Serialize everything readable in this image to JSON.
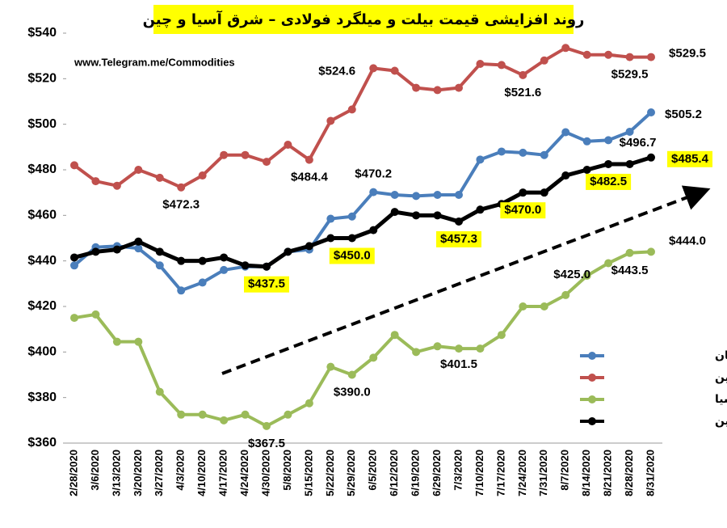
{
  "chart_data": {
    "type": "line",
    "title": "روند افزایشی قیمت بیلت و میلگرد فولادی – شرق آسیا و چین",
    "watermark": "www.Telegram.me/Commodities",
    "categories": [
      "2/28/2020",
      "3/6/2020",
      "3/13/2020",
      "3/20/2020",
      "3/27/2020",
      "4/3/2020",
      "4/10/2020",
      "4/17/2020",
      "4/24/2020",
      "4/30/2020",
      "5/8/2020",
      "5/15/2020",
      "5/22/2020",
      "5/29/2020",
      "6/5/2020",
      "6/12/2020",
      "6/19/2020",
      "6/29/2020",
      "7/3/2020",
      "7/10/2020",
      "7/17/2020",
      "7/24/2020",
      "7/31/2020",
      "8/7/2020",
      "8/14/2020",
      "8/21/2020",
      "8/28/2020",
      "8/31/2020"
    ],
    "ylim": [
      360,
      540
    ],
    "yticks": [
      {
        "value": 360,
        "label": "$360"
      },
      {
        "value": 380,
        "label": "$380"
      },
      {
        "value": 400,
        "label": "$400"
      },
      {
        "value": 420,
        "label": "$420"
      },
      {
        "value": 440,
        "label": "$440"
      },
      {
        "value": 460,
        "label": "$460"
      },
      {
        "value": 480,
        "label": "$480"
      },
      {
        "value": 500,
        "label": "$500"
      },
      {
        "value": 520,
        "label": "$520"
      },
      {
        "value": 540,
        "label": "$540"
      }
    ],
    "grid": false,
    "series": [
      {
        "name": "بیلت تانگشان",
        "color": "#4a7ebb",
        "values": [
          438,
          446,
          446.5,
          445.5,
          438,
          427,
          430.5,
          436,
          437.5,
          437.5,
          444,
          445,
          458.5,
          459.5,
          470.2,
          469,
          468.5,
          469,
          469,
          484.5,
          488,
          487.5,
          486.5,
          496.5,
          492.5,
          493,
          496.7,
          505.2
        ],
        "value_labels": [
          null,
          null,
          null,
          null,
          null,
          null,
          null,
          null,
          null,
          null,
          null,
          null,
          null,
          null,
          "$470.2",
          null,
          null,
          null,
          null,
          null,
          null,
          null,
          null,
          null,
          null,
          null,
          "$496.7",
          "$505.2"
        ]
      },
      {
        "name": "میلگرد شمال چین",
        "color": "#c0504d",
        "values": [
          482,
          475,
          473,
          480,
          476.5,
          472.3,
          477.5,
          486.5,
          486.5,
          483.5,
          491,
          484.4,
          501.5,
          506.5,
          524.6,
          523.5,
          516,
          515,
          516,
          526.5,
          526,
          521.6,
          528,
          533.5,
          530.5,
          530.5,
          529.5,
          529.5
        ],
        "value_labels": [
          null,
          null,
          null,
          null,
          null,
          "$472.3",
          null,
          null,
          null,
          null,
          null,
          "$484.4",
          null,
          null,
          "$524.6",
          null,
          null,
          null,
          null,
          null,
          null,
          "$521.6",
          null,
          null,
          null,
          null,
          "$529.5",
          "$529.5"
        ]
      },
      {
        "name": "بیلت شرق آسیا",
        "color": "#9bbb59",
        "values": [
          415,
          416.5,
          404.5,
          404.5,
          382.5,
          372.5,
          372.5,
          370,
          372.5,
          367.5,
          372.5,
          377.5,
          393.5,
          390,
          397.5,
          407.5,
          400,
          402.5,
          401.5,
          401.5,
          407.5,
          420,
          420,
          425,
          433.5,
          439,
          443.5,
          444
        ],
        "value_labels": [
          null,
          null,
          null,
          null,
          null,
          null,
          null,
          null,
          null,
          "$367.5",
          null,
          null,
          null,
          "$390.0",
          null,
          null,
          null,
          null,
          "$401.5",
          null,
          null,
          null,
          null,
          "$425.0",
          null,
          null,
          "$443.5",
          "$444.0"
        ]
      },
      {
        "name": "میلگرد فوب چین",
        "color": "#000000",
        "label_background": "#ffff00",
        "values": [
          441.5,
          444,
          445,
          448.5,
          444,
          440,
          440,
          441.5,
          438,
          437.5,
          444,
          446.5,
          450,
          450,
          453.5,
          461.5,
          460,
          460,
          457.3,
          462.5,
          465,
          470,
          470,
          477.5,
          480,
          482.5,
          482.5,
          485.4
        ],
        "value_labels": [
          null,
          null,
          null,
          null,
          null,
          null,
          null,
          null,
          null,
          "$437.5",
          null,
          null,
          null,
          "$450.0",
          null,
          null,
          null,
          null,
          "$457.3",
          null,
          null,
          "$470.0",
          null,
          null,
          null,
          "$482.5",
          null,
          "$485.4"
        ]
      }
    ]
  }
}
